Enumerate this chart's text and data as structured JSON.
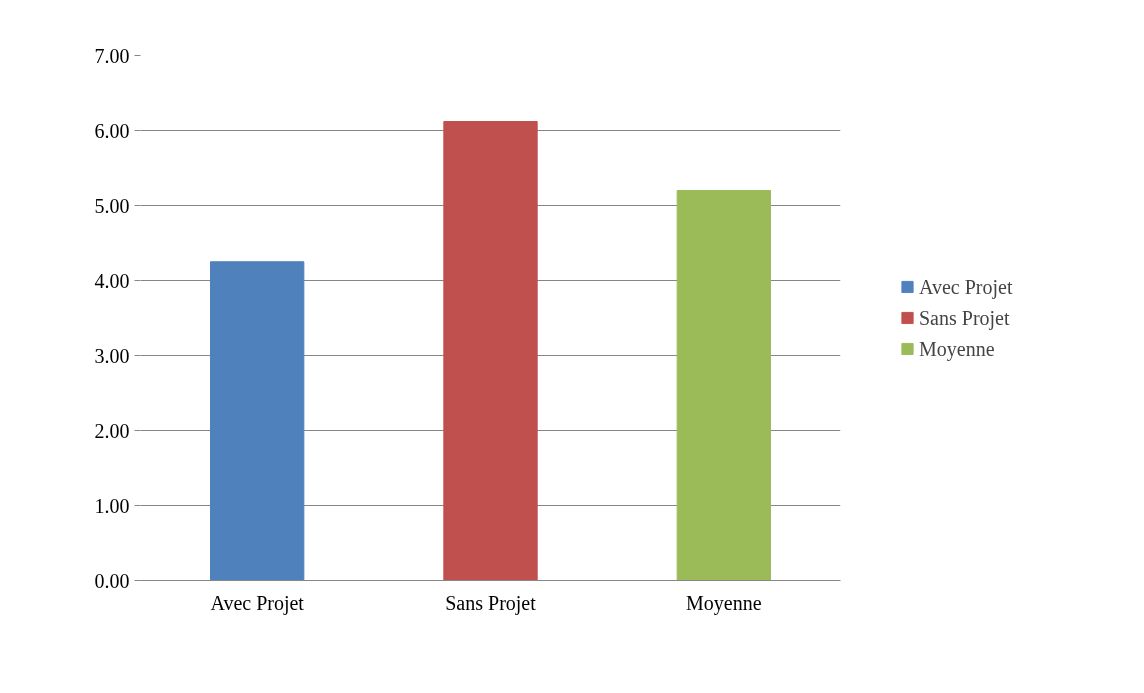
{
  "chart_data": {
    "type": "bar",
    "categories": [
      "Avec Projet",
      "Sans Projet",
      "Moyenne"
    ],
    "series": [
      {
        "name": "Avec Projet",
        "color": "#4f81bd",
        "values": [
          4.25,
          null,
          null
        ]
      },
      {
        "name": "Sans Projet",
        "color": "#c0504d",
        "values": [
          null,
          6.12,
          null
        ]
      },
      {
        "name": "Moyenne",
        "color": "#9bbb59",
        "values": [
          null,
          null,
          5.2
        ]
      }
    ],
    "ylim": [
      0,
      7
    ],
    "yticks": [
      {
        "value": 0,
        "label": "0.00"
      },
      {
        "value": 1,
        "label": "1.00"
      },
      {
        "value": 2,
        "label": "2.00"
      },
      {
        "value": 3,
        "label": "3.00"
      },
      {
        "value": 4,
        "label": "4.00"
      },
      {
        "value": 5,
        "label": "5.00"
      },
      {
        "value": 6,
        "label": "6.00"
      },
      {
        "value": 7,
        "label": "7.00"
      }
    ],
    "grid": "y",
    "legend": "right"
  }
}
